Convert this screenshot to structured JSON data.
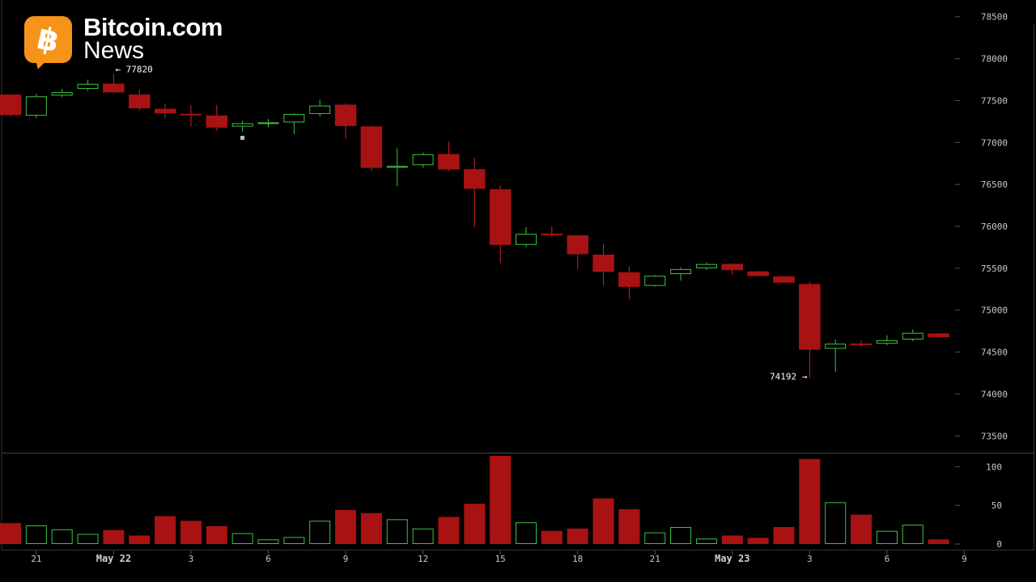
{
  "brand": {
    "logo_symbol": "฿",
    "name": "Bitcoin.com",
    "sub": "News",
    "color": "#f7931a"
  },
  "colors": {
    "up": "#3ec43e",
    "down": "#a81212",
    "down_wick": "#d42020",
    "axis_text": "#c8c8c8",
    "background": "#000000"
  },
  "chart_data": {
    "type": "candlestick",
    "price_axis": {
      "ticks": [
        73500,
        74000,
        74500,
        75000,
        75500,
        76000,
        76500,
        77000,
        77500,
        78000,
        78500
      ],
      "ylim": [
        73300,
        78700
      ]
    },
    "volume_axis": {
      "ticks": [
        0,
        50,
        100
      ],
      "ylim": [
        0,
        115
      ]
    },
    "x_ticks": [
      {
        "index": 1,
        "label": "21",
        "bold": false
      },
      {
        "index": 4,
        "label": "May 22",
        "bold": true
      },
      {
        "index": 7,
        "label": "3",
        "bold": false
      },
      {
        "index": 10,
        "label": "6",
        "bold": false
      },
      {
        "index": 13,
        "label": "9",
        "bold": false
      },
      {
        "index": 16,
        "label": "12",
        "bold": false
      },
      {
        "index": 19,
        "label": "15",
        "bold": false
      },
      {
        "index": 22,
        "label": "18",
        "bold": false
      },
      {
        "index": 25,
        "label": "21",
        "bold": false
      },
      {
        "index": 28,
        "label": "May 23",
        "bold": true
      },
      {
        "index": 31,
        "label": "3",
        "bold": false
      },
      {
        "index": 34,
        "label": "6",
        "bold": false
      },
      {
        "index": 37,
        "label": "9",
        "bold": false
      }
    ],
    "candles": [
      {
        "o": 77570,
        "h": 77580,
        "c": 77330,
        "l": 77310,
        "v": 27
      },
      {
        "o": 77320,
        "h": 77580,
        "c": 77550,
        "l": 77290,
        "v": 24
      },
      {
        "o": 77560,
        "h": 77640,
        "c": 77600,
        "l": 77540,
        "v": 19
      },
      {
        "o": 77640,
        "h": 77750,
        "c": 77700,
        "l": 77620,
        "v": 13
      },
      {
        "o": 77700,
        "h": 77820,
        "c": 77600,
        "l": 77590,
        "v": 18
      },
      {
        "o": 77570,
        "h": 77630,
        "c": 77410,
        "l": 77380,
        "v": 11
      },
      {
        "o": 77400,
        "h": 77460,
        "c": 77350,
        "l": 77290,
        "v": 36
      },
      {
        "o": 77340,
        "h": 77450,
        "c": 77330,
        "l": 77190,
        "v": 30
      },
      {
        "o": 77320,
        "h": 77450,
        "c": 77180,
        "l": 77140,
        "v": 23
      },
      {
        "o": 77190,
        "h": 77260,
        "c": 77230,
        "l": 77130,
        "v": 14
      },
      {
        "o": 77230,
        "h": 77280,
        "c": 77240,
        "l": 77180,
        "v": 6
      },
      {
        "o": 77240,
        "h": 77350,
        "c": 77340,
        "l": 77100,
        "v": 9
      },
      {
        "o": 77340,
        "h": 77510,
        "c": 77440,
        "l": 77310,
        "v": 30
      },
      {
        "o": 77450,
        "h": 77470,
        "c": 77200,
        "l": 77040,
        "v": 44
      },
      {
        "o": 77190,
        "h": 77200,
        "c": 76700,
        "l": 76660,
        "v": 40
      },
      {
        "o": 76700,
        "h": 76930,
        "c": 76720,
        "l": 76480,
        "v": 32
      },
      {
        "o": 76730,
        "h": 76880,
        "c": 76860,
        "l": 76700,
        "v": 20
      },
      {
        "o": 76860,
        "h": 77010,
        "c": 76680,
        "l": 76660,
        "v": 35
      },
      {
        "o": 76680,
        "h": 76820,
        "c": 76450,
        "l": 75990,
        "v": 52
      },
      {
        "o": 76440,
        "h": 76490,
        "c": 75780,
        "l": 75560,
        "v": 114
      },
      {
        "o": 75780,
        "h": 75990,
        "c": 75910,
        "l": 75750,
        "v": 28
      },
      {
        "o": 75910,
        "h": 76000,
        "c": 75900,
        "l": 75870,
        "v": 17
      },
      {
        "o": 75890,
        "h": 75890,
        "c": 75670,
        "l": 75490,
        "v": 20
      },
      {
        "o": 75660,
        "h": 75790,
        "c": 75460,
        "l": 75290,
        "v": 59
      },
      {
        "o": 75450,
        "h": 75520,
        "c": 75280,
        "l": 75130,
        "v": 45
      },
      {
        "o": 75290,
        "h": 75420,
        "c": 75410,
        "l": 75280,
        "v": 15
      },
      {
        "o": 75430,
        "h": 75510,
        "c": 75490,
        "l": 75350,
        "v": 22
      },
      {
        "o": 75500,
        "h": 75570,
        "c": 75550,
        "l": 75480,
        "v": 7
      },
      {
        "o": 75550,
        "h": 75560,
        "c": 75480,
        "l": 75420,
        "v": 11
      },
      {
        "o": 75460,
        "h": 75470,
        "c": 75410,
        "l": 75400,
        "v": 8
      },
      {
        "o": 75400,
        "h": 75410,
        "c": 75330,
        "l": 75320,
        "v": 22
      },
      {
        "o": 75310,
        "h": 75340,
        "c": 74530,
        "l": 74192,
        "v": 110
      },
      {
        "o": 74540,
        "h": 74650,
        "c": 74600,
        "l": 74260,
        "v": 54
      },
      {
        "o": 74600,
        "h": 74640,
        "c": 74590,
        "l": 74560,
        "v": 38
      },
      {
        "o": 74600,
        "h": 74700,
        "c": 74640,
        "l": 74580,
        "v": 17
      },
      {
        "o": 74650,
        "h": 74770,
        "c": 74730,
        "l": 74630,
        "v": 25
      },
      {
        "o": 74720,
        "h": 74730,
        "c": 74680,
        "l": 74670,
        "v": 6
      }
    ],
    "annotations": [
      {
        "candle": 4,
        "at": "high",
        "side": "right",
        "text": "← 77820"
      },
      {
        "candle": 31,
        "at": "low",
        "side": "left",
        "text": "74192 →"
      }
    ]
  }
}
